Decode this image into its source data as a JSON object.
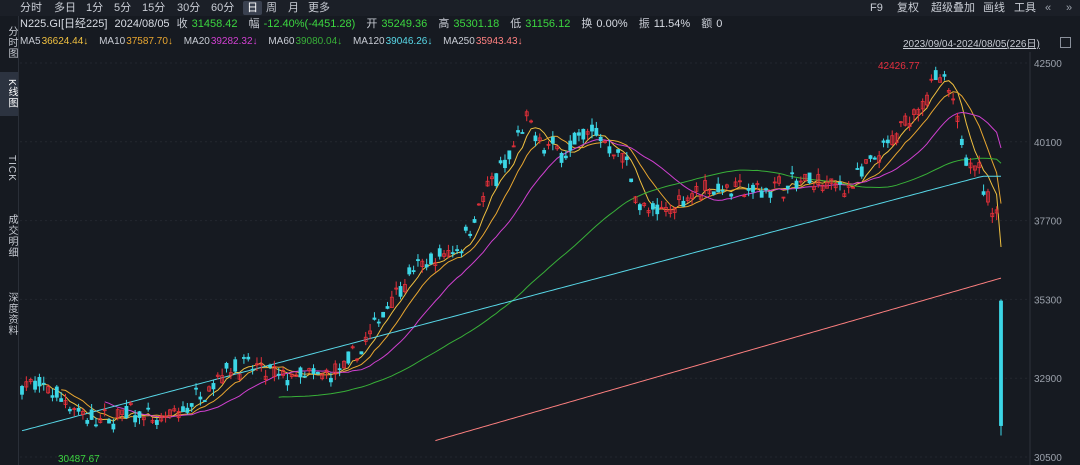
{
  "toolbar": {
    "timeframes": [
      "分时",
      "多日",
      "1分",
      "5分",
      "15分",
      "30分",
      "60分",
      "日",
      "周",
      "月",
      "更多"
    ],
    "active_timeframe": "日",
    "right": [
      "F9",
      "复权",
      "超级叠加",
      "画线",
      "工具"
    ]
  },
  "info": {
    "name": "N225.GI[日经225]",
    "date": "2024/08/05",
    "close_label": "收",
    "close": "31458.42",
    "change_label": "幅",
    "change": "-12.40%(-4451.28)",
    "open_label": "开",
    "open": "35249.36",
    "high_label": "高",
    "high": "35301.18",
    "low_label": "低",
    "low": "31156.12",
    "turnover_label": "换",
    "turnover": "0.00%",
    "amplitude_label": "振",
    "amplitude": "11.54%",
    "amount_label": "额",
    "amount": "0"
  },
  "ma": [
    {
      "label": "MA5",
      "value": "36624.44↓",
      "color": "#f0c040"
    },
    {
      "label": "MA10",
      "value": "37587.70↓",
      "color": "#e8a630"
    },
    {
      "label": "MA20",
      "value": "39282.32↓",
      "color": "#d040d0"
    },
    {
      "label": "MA60",
      "value": "39080.04↓",
      "color": "#38b038"
    },
    {
      "label": "MA120",
      "value": "39046.26↓",
      "color": "#58d8e8"
    },
    {
      "label": "MA250",
      "value": "35943.43↓",
      "color": "#ff8080"
    }
  ],
  "range": "2023/09/04-2024/08/05(226日)",
  "sidebar": [
    "分时图",
    "K线图",
    "TICK",
    "成交明细",
    "深度资料"
  ],
  "active_side": "K线图",
  "colors": {
    "up": "#e8303a",
    "down": "#3cd6e6",
    "bg": "#161a21"
  },
  "chart_data": {
    "type": "candlestick",
    "y_ticks": [
      42500,
      40100,
      37700,
      35300,
      32900,
      30500
    ],
    "ylim": [
      30500,
      42500
    ],
    "max_label": "42426.77",
    "min_label": "30487.67",
    "last": {
      "open": 35249.36,
      "high": 35301.18,
      "low": 31156.12,
      "close": 31458.42
    }
  }
}
